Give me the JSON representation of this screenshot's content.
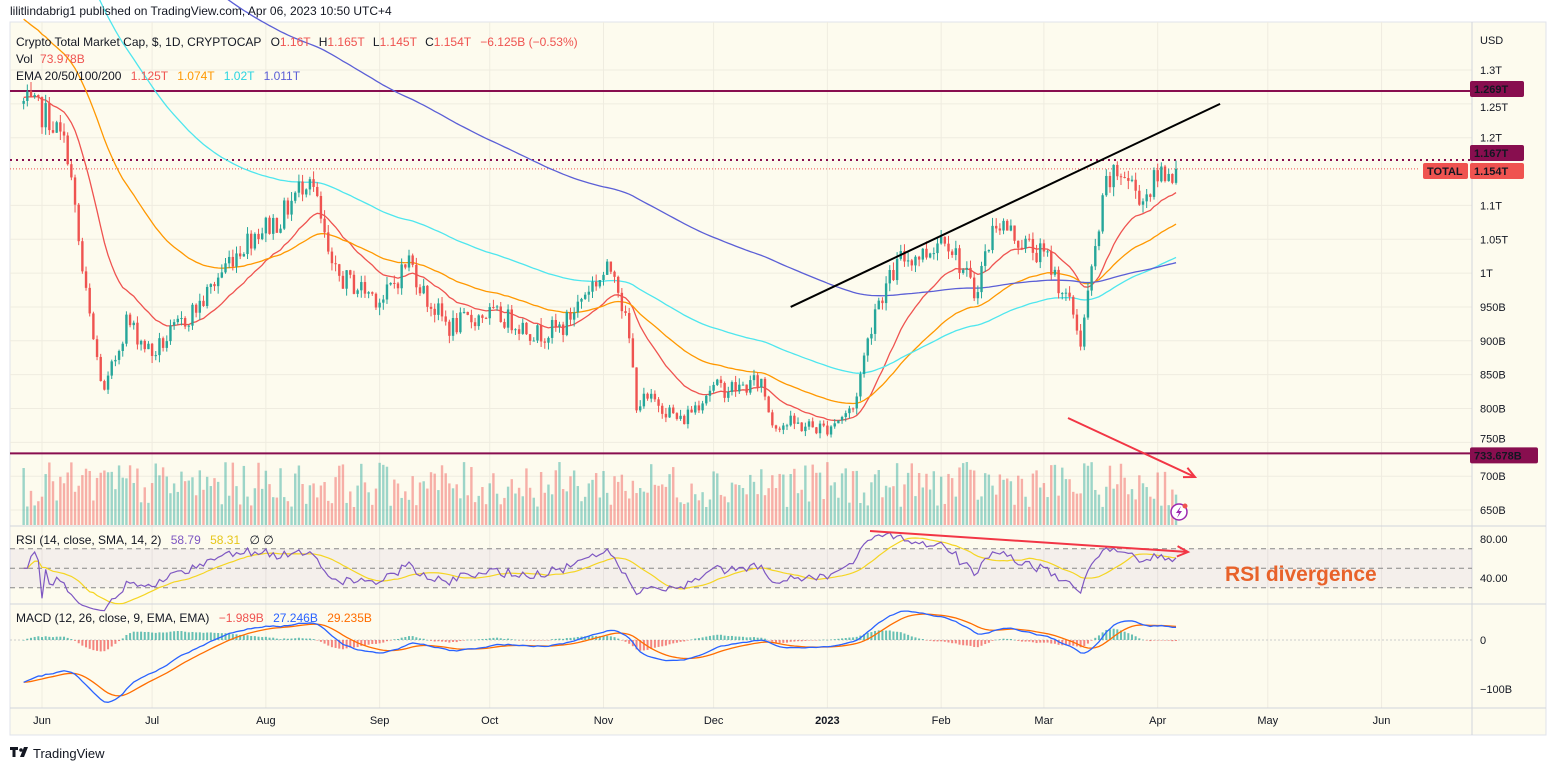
{
  "header": {
    "published": "lilitlindabrig1 published on TradingView.com, Apr 06, 2023 10:50 UTC+4"
  },
  "legend": {
    "symbol": "Crypto Total Market Cap, $, 1D, CRYPTOCAP",
    "o_label": "O",
    "o": "1.16T",
    "h_label": "H",
    "h": "1.165T",
    "l_label": "L",
    "l": "1.145T",
    "c_label": "C",
    "c": "1.154T",
    "change": "−6.125B (−0.53%)",
    "vol_label": "Vol",
    "vol": "73.978B",
    "ema_label": "EMA 20/50/100/200",
    "ema20": "1.125T",
    "ema50": "1.074T",
    "ema100": "1.02T",
    "ema200": "1.011T"
  },
  "rsi_legend": {
    "label": "RSI (14, close, SMA, 14, 2)",
    "rsi": "58.79",
    "sma": "58.31",
    "extra": "∅  ∅"
  },
  "macd_legend": {
    "label": "MACD (12, 26, close, 9, EMA, EMA)",
    "hist": "−1.989B",
    "macd": "27.246B",
    "signal": "29.235B"
  },
  "price_axis": {
    "currency": "USD",
    "ticks": [
      "1.3T",
      "1.25T",
      "1.2T",
      "1.1T",
      "1.05T",
      "1T",
      "950B",
      "900B",
      "850B",
      "800B",
      "750B",
      "700B",
      "650B"
    ],
    "tick_values": [
      1300,
      1250,
      1200,
      1100,
      1050,
      1000,
      950,
      900,
      850,
      800,
      750,
      700,
      650
    ],
    "labels": {
      "resistance": "1.269T",
      "recent_high": "1.167T",
      "symbol_tag": "TOTAL",
      "last": "1.154T",
      "support": "733.678B"
    }
  },
  "rsi_axis": {
    "ticks": [
      "80.00",
      "40.00"
    ]
  },
  "macd_axis": {
    "ticks": [
      "0",
      "−100B"
    ]
  },
  "time_axis": {
    "ticks": [
      "Jun",
      "Jul",
      "Aug",
      "Sep",
      "Oct",
      "Nov",
      "Dec",
      "2023",
      "Feb",
      "Mar",
      "Apr",
      "May",
      "Jun"
    ]
  },
  "annotation": {
    "text": "RSI divergence"
  },
  "footer": {
    "brand": "TradingView"
  },
  "colors": {
    "up": "#26a69a",
    "down": "#ef5350",
    "ema20": "#ef5350",
    "ema50": "#ff9800",
    "ema100": "#4ee6ee",
    "ema200": "#5b5fd6",
    "level": "#880e4f",
    "rsi": "#7e57c2",
    "rsi_sma": "#f5d523",
    "macd": "#2962ff",
    "signal": "#ff6d00",
    "annotation": "#e8622a",
    "background": "#fdfbee"
  },
  "chart_data": {
    "type": "candlestick",
    "symbol": "TOTAL",
    "interval": "1D",
    "y_unit": "B USD",
    "ylim": [
      640,
      1340
    ],
    "close_anchors": [
      [
        "2022-05-27",
        1250
      ],
      [
        "2022-06-03",
        1230
      ],
      [
        "2022-06-08",
        1180
      ],
      [
        "2022-06-12",
        1000
      ],
      [
        "2022-06-15",
        900
      ],
      [
        "2022-06-18",
        820
      ],
      [
        "2022-06-24",
        930
      ],
      [
        "2022-07-01",
        880
      ],
      [
        "2022-07-08",
        920
      ],
      [
        "2022-07-15",
        960
      ],
      [
        "2022-07-22",
        1020
      ],
      [
        "2022-07-29",
        1060
      ],
      [
        "2022-08-05",
        1080
      ],
      [
        "2022-08-13",
        1150
      ],
      [
        "2022-08-19",
        1000
      ],
      [
        "2022-08-26",
        980
      ],
      [
        "2022-09-02",
        960
      ],
      [
        "2022-09-09",
        1020
      ],
      [
        "2022-09-14",
        960
      ],
      [
        "2022-09-20",
        920
      ],
      [
        "2022-09-30",
        940
      ],
      [
        "2022-10-07",
        930
      ],
      [
        "2022-10-14",
        910
      ],
      [
        "2022-10-21",
        920
      ],
      [
        "2022-10-28",
        980
      ],
      [
        "2022-11-04",
        1010
      ],
      [
        "2022-11-08",
        900
      ],
      [
        "2022-11-10",
        810
      ],
      [
        "2022-11-16",
        810
      ],
      [
        "2022-11-22",
        780
      ],
      [
        "2022-11-30",
        830
      ],
      [
        "2022-12-08",
        830
      ],
      [
        "2022-12-14",
        840
      ],
      [
        "2022-12-17",
        780
      ],
      [
        "2022-12-25",
        775
      ],
      [
        "2022-12-31",
        770
      ],
      [
        "2023-01-08",
        800
      ],
      [
        "2023-01-14",
        950
      ],
      [
        "2023-01-21",
        1020
      ],
      [
        "2023-01-28",
        1030
      ],
      [
        "2023-02-02",
        1060
      ],
      [
        "2023-02-10",
        970
      ],
      [
        "2023-02-16",
        1080
      ],
      [
        "2023-02-22",
        1050
      ],
      [
        "2023-03-02",
        1020
      ],
      [
        "2023-03-09",
        940
      ],
      [
        "2023-03-11",
        900
      ],
      [
        "2023-03-14",
        1000
      ],
      [
        "2023-03-18",
        1130
      ],
      [
        "2023-03-22",
        1150
      ],
      [
        "2023-03-28",
        1110
      ],
      [
        "2023-04-02",
        1150
      ],
      [
        "2023-04-06",
        1154
      ]
    ],
    "horizontal_levels": [
      1269,
      1167,
      733.678
    ],
    "trendline": [
      [
        "2022-12-22",
        950
      ],
      [
        "2023-04-18",
        1250
      ]
    ],
    "rsi_levels": [
      70,
      50,
      30
    ],
    "rsi_ylim": [
      20,
      100
    ],
    "macd_ylim": [
      -145,
      65
    ]
  }
}
